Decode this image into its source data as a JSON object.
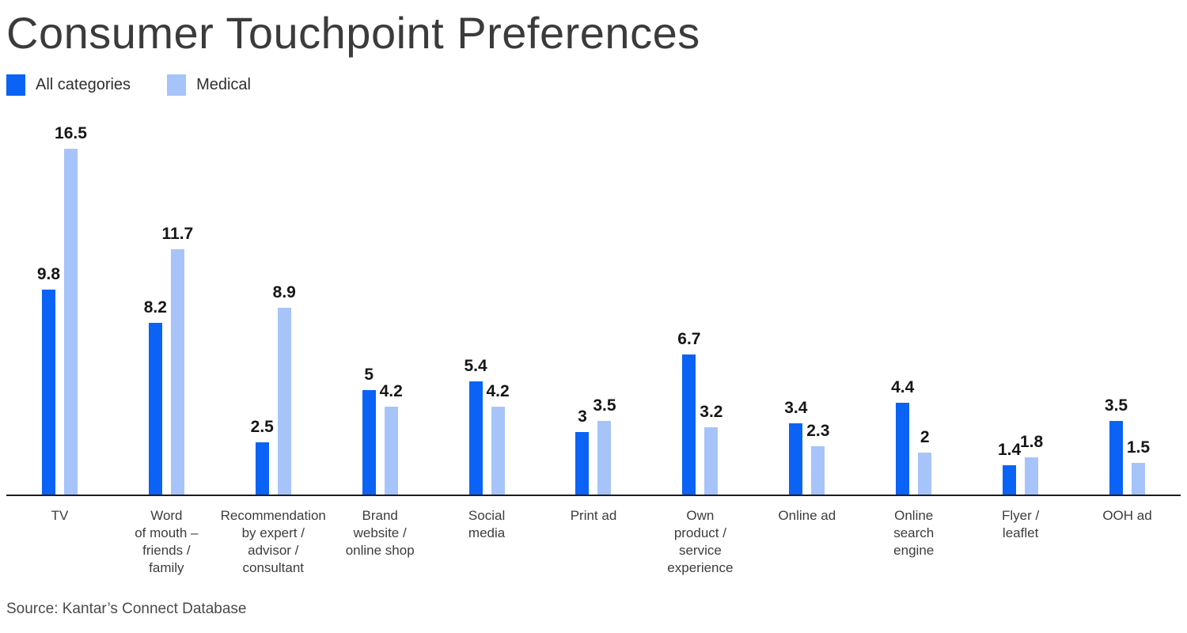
{
  "title": "Consumer Touchpoint Preferences",
  "legend": {
    "items": [
      {
        "label": "All categories",
        "color": "#0A63F5"
      },
      {
        "label": "Medical",
        "color": "#A6C4F9"
      }
    ]
  },
  "source": "Source: Kantar’s Connect Database",
  "colors": {
    "all_categories": "#0A63F5",
    "medical": "#A6C4F9",
    "axis_line": "#1d1d1d",
    "title_text": "#3b3b3b",
    "value_label_text": "#161616",
    "category_label_text": "#3d3d3d"
  },
  "chart_data": {
    "type": "bar",
    "title": "Consumer Touchpoint Preferences",
    "xlabel": "",
    "ylabel": "",
    "ylim": [
      0,
      17
    ],
    "grid": false,
    "legend_position": "top-left",
    "value_labels_shown": true,
    "categories": [
      "TV",
      "Word of mouth – friends / family",
      "Recommendation by expert / advisor / consultant",
      "Brand website / online shop",
      "Social media",
      "Print ad",
      "Own product / service experience",
      "Online ad",
      "Online search engine",
      "Flyer / leaflet",
      "OOH ad"
    ],
    "category_label_lines": [
      [
        "TV"
      ],
      [
        "Word",
        "of mouth –",
        "friends /",
        "family"
      ],
      [
        "Recommendation",
        "by expert /",
        "advisor /",
        "consultant"
      ],
      [
        "Brand",
        "website /",
        "online shop"
      ],
      [
        "Social",
        "media"
      ],
      [
        "Print ad"
      ],
      [
        "Own",
        "product /",
        "service",
        "experience"
      ],
      [
        "Online ad"
      ],
      [
        "Online",
        "search",
        "engine"
      ],
      [
        "Flyer /",
        "leaflet"
      ],
      [
        "OOH ad"
      ]
    ],
    "series": [
      {
        "name": "All categories",
        "color": "#0A63F5",
        "values": [
          9.8,
          8.2,
          2.5,
          5,
          5.4,
          3,
          6.7,
          3.4,
          4.4,
          1.4,
          3.5
        ]
      },
      {
        "name": "Medical",
        "color": "#A6C4F9",
        "values": [
          16.5,
          11.7,
          8.9,
          4.2,
          4.2,
          3.5,
          3.2,
          2.3,
          2,
          1.8,
          1.5
        ]
      }
    ]
  }
}
